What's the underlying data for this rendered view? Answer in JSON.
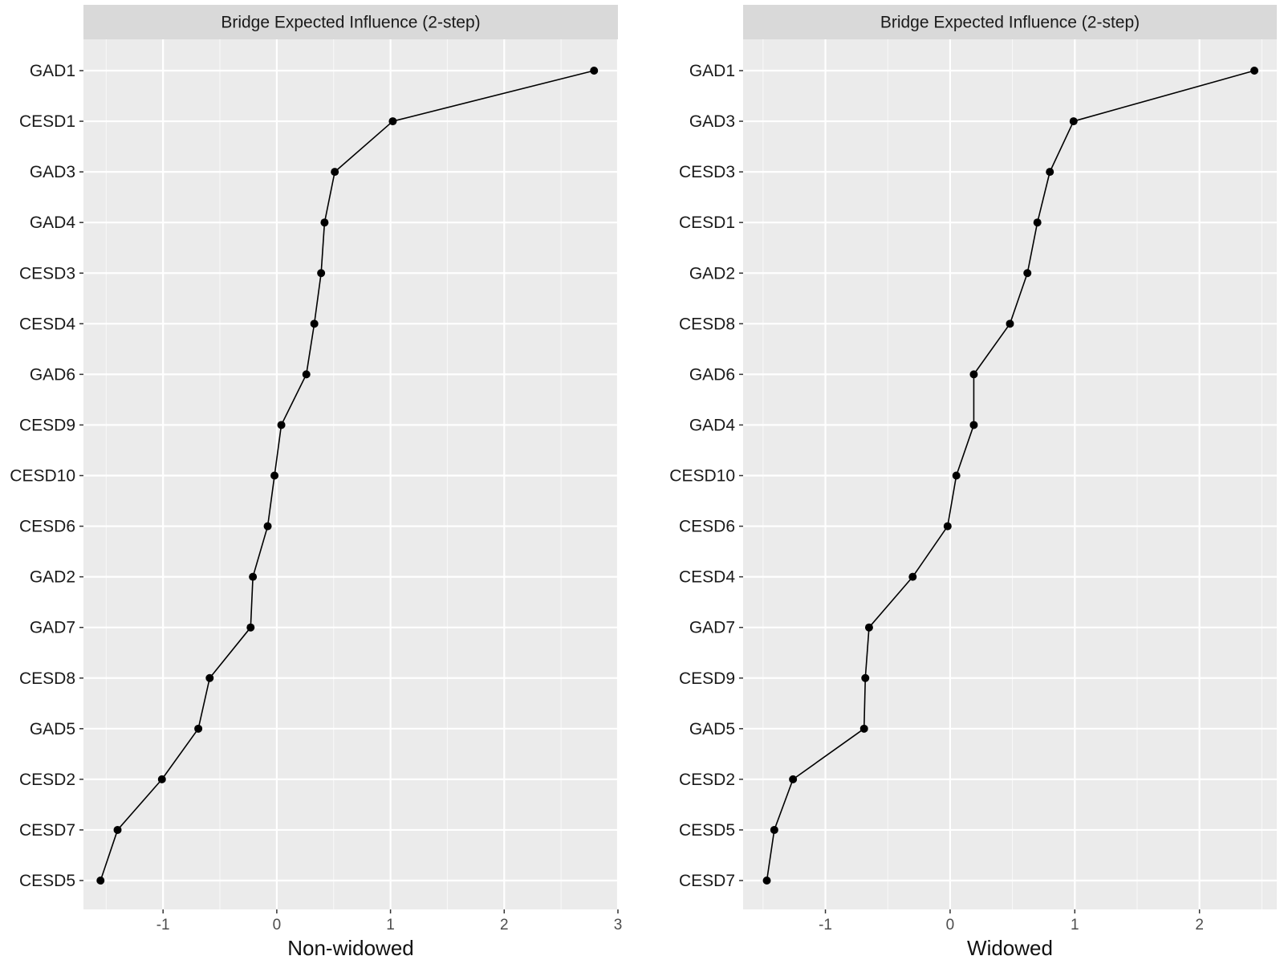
{
  "colors": {
    "panel_background": "#ebebeb",
    "strip_background": "#d9d9d9",
    "grid": "#ffffff",
    "series": "#000000"
  },
  "chart_data": [
    {
      "type": "line",
      "title": "Bridge Expected Influence (2-step)",
      "xlabel": "Non-widowed",
      "ylabel": "",
      "xlim": [
        -1.7,
        3.0
      ],
      "xticks": [
        -1,
        0,
        1,
        2,
        3
      ],
      "grid": true,
      "categories": [
        "GAD1",
        "CESD1",
        "GAD3",
        "GAD4",
        "CESD3",
        "CESD4",
        "GAD6",
        "CESD9",
        "CESD10",
        "CESD6",
        "GAD2",
        "GAD7",
        "CESD8",
        "GAD5",
        "CESD2",
        "CESD7",
        "CESD5"
      ],
      "values": [
        2.79,
        1.02,
        0.51,
        0.42,
        0.39,
        0.33,
        0.26,
        0.04,
        -0.02,
        -0.08,
        -0.21,
        -0.23,
        -0.59,
        -0.69,
        -1.01,
        -1.4,
        -1.55
      ]
    },
    {
      "type": "line",
      "title": "Bridge Expected Influence (2-step)",
      "xlabel": "Widowed",
      "ylabel": "",
      "xlim": [
        -1.66,
        2.62
      ],
      "xticks": [
        -1,
        0,
        1,
        2
      ],
      "grid": true,
      "categories": [
        "GAD1",
        "GAD3",
        "CESD3",
        "CESD1",
        "GAD2",
        "CESD8",
        "GAD6",
        "GAD4",
        "CESD10",
        "CESD6",
        "CESD4",
        "GAD7",
        "CESD9",
        "GAD5",
        "CESD2",
        "CESD5",
        "CESD7"
      ],
      "values": [
        2.44,
        0.99,
        0.8,
        0.7,
        0.62,
        0.48,
        0.19,
        0.19,
        0.05,
        -0.02,
        -0.3,
        -0.65,
        -0.68,
        -0.69,
        -1.26,
        -1.41,
        -1.47
      ]
    }
  ]
}
